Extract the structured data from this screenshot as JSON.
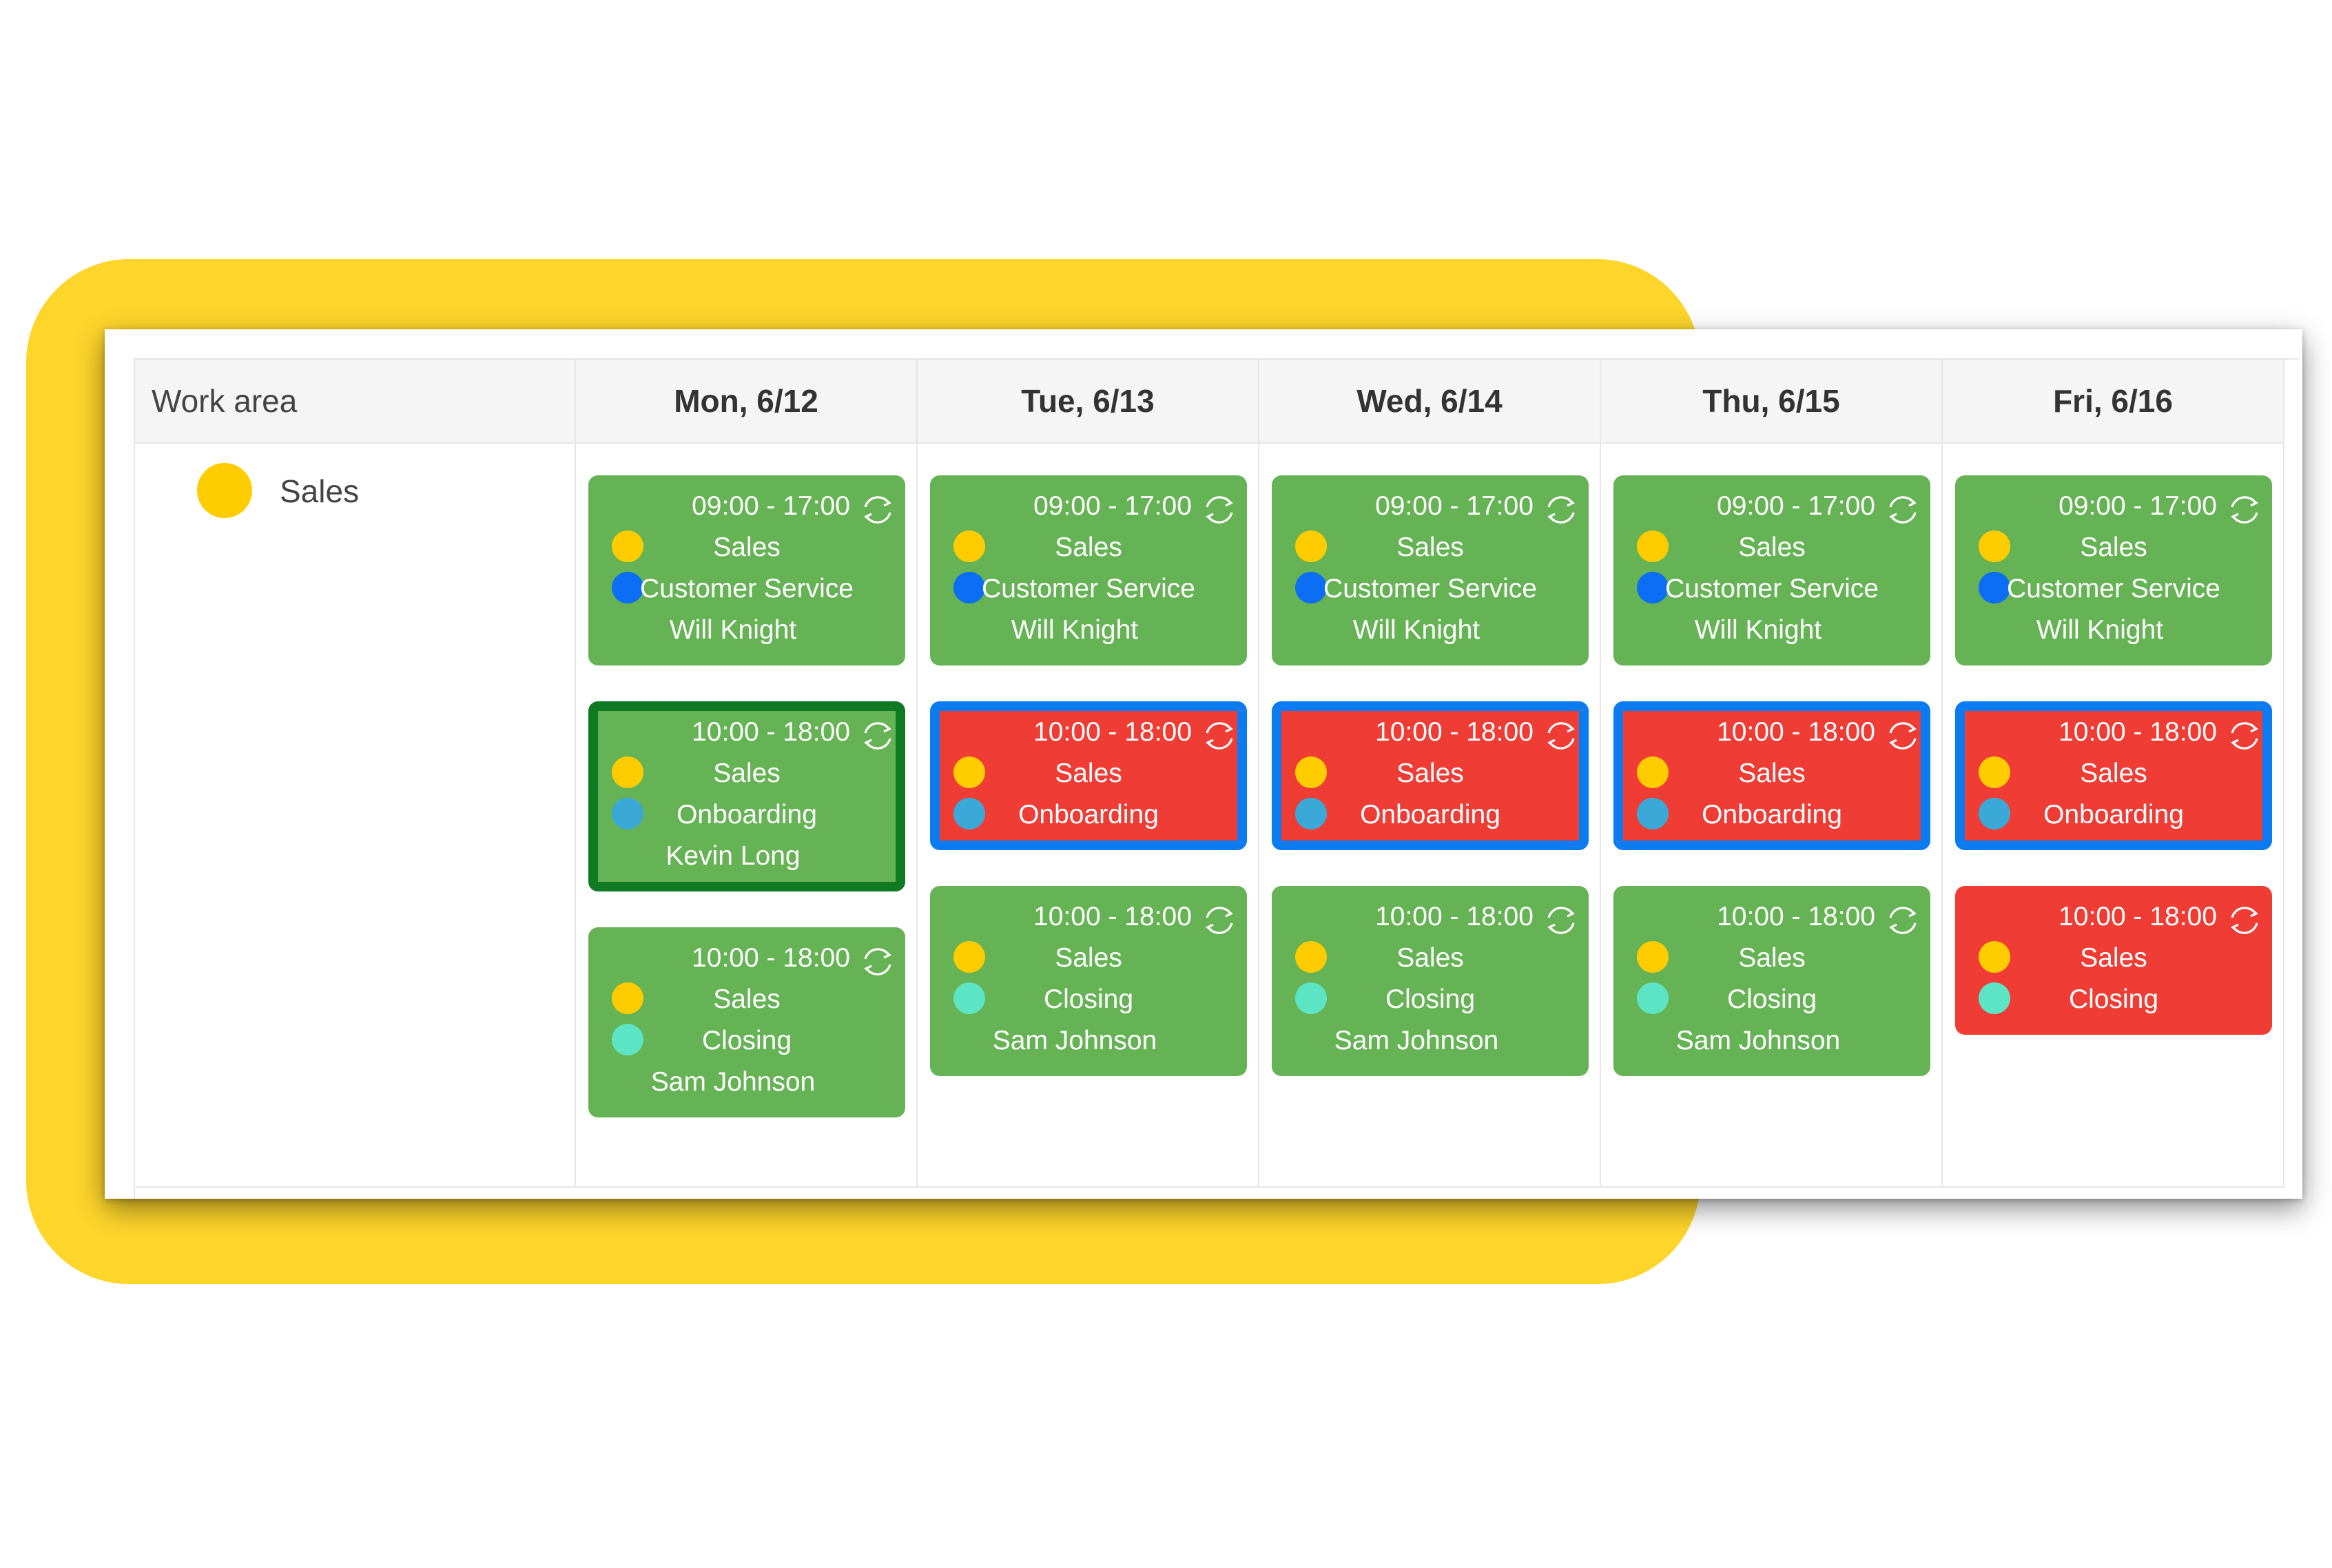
{
  "colors": {
    "frame": "#FDD52B",
    "ok": "#66B355",
    "conflict": "#EF3C35",
    "selected_green": "#0F7A22",
    "selected_blue": "#0B7BF2"
  },
  "header": {
    "work_area_label": "Work area",
    "days": [
      "Mon, 6/12",
      "Tue, 6/13",
      "Wed, 6/14",
      "Thu, 6/15",
      "Fri, 6/16"
    ]
  },
  "work_area": {
    "name": "Sales",
    "color": "#FFCC00"
  },
  "rows": [
    {
      "time": "09:00 - 17:00",
      "area": "Sales",
      "area_color": "#FFCC00",
      "role": "Customer Service",
      "role_color": "#0B6EF5",
      "shifts": [
        {
          "employee": "Will Knight",
          "status": "green",
          "selection": "none"
        },
        {
          "employee": "Will Knight",
          "status": "green",
          "selection": "none"
        },
        {
          "employee": "Will Knight",
          "status": "green",
          "selection": "none"
        },
        {
          "employee": "Will Knight",
          "status": "green",
          "selection": "none"
        },
        {
          "employee": "Will Knight",
          "status": "green",
          "selection": "none"
        }
      ]
    },
    {
      "time": "10:00 - 18:00",
      "area": "Sales",
      "area_color": "#FFCC00",
      "role": "Onboarding",
      "role_color": "#3AA9D8",
      "shifts": [
        {
          "employee": "Kevin Long",
          "status": "green",
          "selection": "green"
        },
        {
          "employee": "",
          "status": "red",
          "selection": "blue"
        },
        {
          "employee": "",
          "status": "red",
          "selection": "blue"
        },
        {
          "employee": "",
          "status": "red",
          "selection": "blue"
        },
        {
          "employee": "",
          "status": "red",
          "selection": "blue"
        }
      ]
    },
    {
      "time": "10:00 - 18:00",
      "area": "Sales",
      "area_color": "#FFCC00",
      "role": "Closing",
      "role_color": "#5CE5C4",
      "shifts": [
        {
          "employee": "Sam Johnson",
          "status": "green",
          "selection": "none"
        },
        {
          "employee": "Sam Johnson",
          "status": "green",
          "selection": "none"
        },
        {
          "employee": "Sam Johnson",
          "status": "green",
          "selection": "none"
        },
        {
          "employee": "Sam Johnson",
          "status": "green",
          "selection": "none"
        },
        {
          "employee": "",
          "status": "red",
          "selection": "none"
        }
      ]
    }
  ],
  "icons": {
    "repeat": "refresh-icon"
  }
}
